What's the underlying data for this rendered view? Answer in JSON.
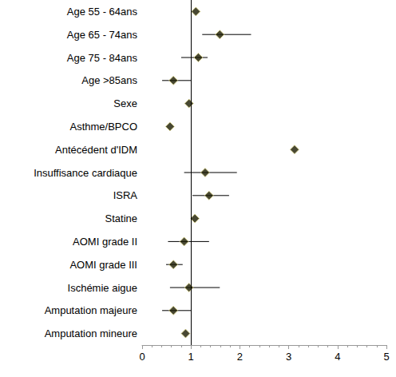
{
  "chart_data": {
    "type": "forest",
    "orientation": "horizontal",
    "categories": [
      "Age 55 - 64ans",
      "Age 65 - 74ans",
      "Age 75 - 84ans",
      "Age >85ans",
      "Sexe",
      "Asthme/BPCO",
      "Antécédent d'IDM",
      "Insuffisance cardiaque",
      "ISRA",
      "Statine",
      "AOMI grade II",
      "AOMI grade III",
      "Ischémie aigue",
      "Amputation majeure",
      "Amputation mineure"
    ],
    "values": [
      1.1,
      1.59,
      1.15,
      0.64,
      0.96,
      0.57,
      3.12,
      1.29,
      1.37,
      1.08,
      0.86,
      0.64,
      0.96,
      0.64,
      0.89
    ],
    "lower": [
      null,
      1.23,
      0.8,
      0.41,
      null,
      null,
      null,
      0.86,
      1.03,
      null,
      0.53,
      0.49,
      0.57,
      0.41,
      null
    ],
    "upper": [
      null,
      2.23,
      1.34,
      1.0,
      null,
      null,
      null,
      1.94,
      1.78,
      null,
      1.37,
      0.83,
      1.59,
      1.0,
      null
    ],
    "reference_line": 1,
    "color": "#1a1a00",
    "marker": "diamond",
    "xlim": [
      0,
      5
    ],
    "xticks": [
      0,
      1,
      2,
      3,
      4,
      5
    ],
    "grid": false
  }
}
